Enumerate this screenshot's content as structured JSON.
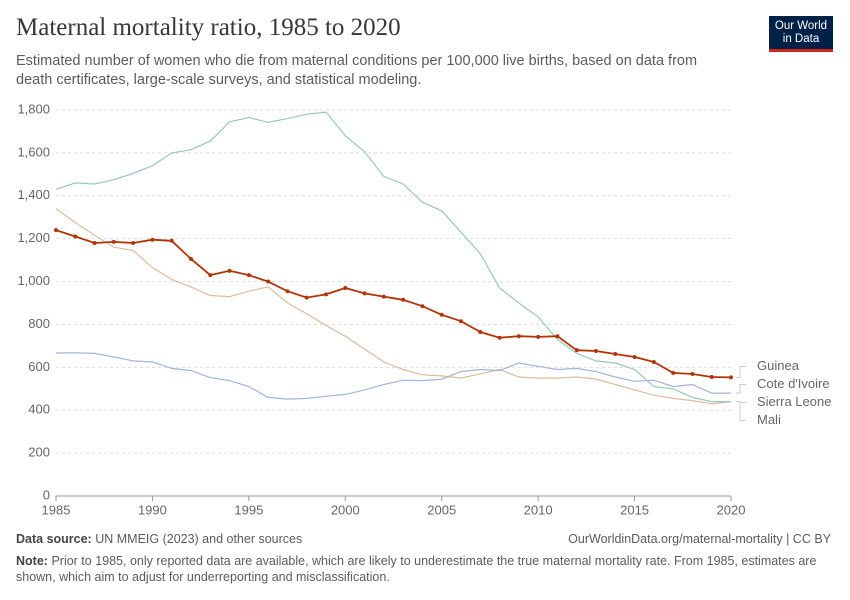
{
  "chart_data": {
    "type": "line",
    "title": "Maternal mortality ratio, 1985 to 2020",
    "subtitle": "Estimated number of women who die from maternal conditions per 100,000 live births, based on data from death certificates, large-scale surveys, and statistical modeling.",
    "x": [
      1985,
      1986,
      1987,
      1988,
      1989,
      1990,
      1991,
      1992,
      1993,
      1994,
      1995,
      1996,
      1997,
      1998,
      1999,
      2000,
      2001,
      2002,
      2003,
      2004,
      2005,
      2006,
      2007,
      2008,
      2009,
      2010,
      2011,
      2012,
      2013,
      2014,
      2015,
      2016,
      2017,
      2018,
      2019,
      2020
    ],
    "xlim": [
      1985,
      2020
    ],
    "xticks": [
      1985,
      1990,
      1995,
      2000,
      2005,
      2010,
      2015,
      2020
    ],
    "ylim": [
      0,
      1800
    ],
    "yticks": [
      0,
      200,
      400,
      600,
      800,
      {
        "value": 1000,
        "label": "1,000"
      },
      {
        "value": 1200,
        "label": "1,200"
      },
      {
        "value": 1400,
        "label": "1,400"
      },
      {
        "value": 1600,
        "label": "1,600"
      },
      {
        "value": 1800,
        "label": "1,800"
      }
    ],
    "grid": true,
    "series": [
      {
        "name": "Guinea",
        "color": "#b13507",
        "markers": true,
        "values": [
          1240,
          1210,
          1180,
          1185,
          1180,
          1195,
          1190,
          1105,
          1030,
          1050,
          1030,
          1000,
          955,
          925,
          940,
          970,
          945,
          930,
          915,
          885,
          845,
          815,
          765,
          738,
          745,
          742,
          745,
          680,
          676,
          662,
          648,
          625,
          574,
          569,
          555,
          553
        ]
      },
      {
        "name": "Cote d'Ivoire",
        "color": "#a2b4d9",
        "markers": false,
        "values": [
          667,
          668,
          665,
          648,
          630,
          625,
          595,
          585,
          552,
          538,
          510,
          460,
          452,
          455,
          465,
          474,
          495,
          520,
          540,
          538,
          545,
          580,
          590,
          585,
          620,
          605,
          590,
          595,
          580,
          555,
          535,
          540,
          510,
          520,
          480,
          480
        ]
      },
      {
        "name": "Sierra Leone",
        "color": "#96c9bb",
        "markers": false,
        "values": [
          1430,
          1460,
          1455,
          1475,
          1505,
          1540,
          1600,
          1615,
          1655,
          1745,
          1765,
          1742,
          1760,
          1780,
          1790,
          1680,
          1605,
          1490,
          1455,
          1370,
          1330,
          1230,
          1130,
          970,
          900,
          835,
          730,
          665,
          630,
          620,
          590,
          510,
          500,
          460,
          440,
          440
        ]
      },
      {
        "name": "Mali",
        "color": "#dcbc9f",
        "markers": false,
        "values": [
          1340,
          1275,
          1215,
          1160,
          1145,
          1065,
          1010,
          975,
          935,
          930,
          955,
          975,
          900,
          850,
          795,
          745,
          685,
          625,
          590,
          565,
          560,
          550,
          570,
          590,
          555,
          550,
          550,
          555,
          545,
          520,
          495,
          470,
          455,
          445,
          430,
          440
        ]
      }
    ]
  },
  "logo": {
    "line1": "Our World",
    "line2": "in Data"
  },
  "footer": {
    "source_label": "Data source:",
    "source": "UN MMEIG (2023) and other sources",
    "url": "OurWorldinData.org/maternal-mortality | CC BY",
    "note_label": "Note:",
    "note": "Prior to 1985, only reported data are available, which are likely to underestimate the true maternal mortality rate. From 1985, estimates are shown, which aim to adjust for underreporting and misclassification."
  }
}
